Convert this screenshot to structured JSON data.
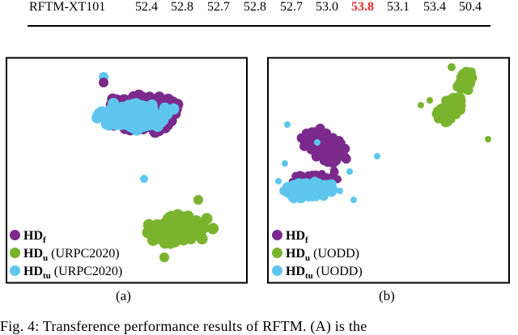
{
  "table_row": {
    "label": "RFTM-XT101",
    "values": [
      "52.4",
      "52.8",
      "52.7",
      "52.8",
      "52.7",
      "53.0",
      "53.8",
      "53.1",
      "53.4",
      "50.4"
    ],
    "best_index": 6,
    "best_color": "#e8272b"
  },
  "colors": {
    "hd_f": "#7b2a8c",
    "hd_u": "#7ab32e",
    "hd_tu": "#5ec6ee"
  },
  "panels": [
    {
      "label": "(a)",
      "legend": [
        {
          "name": "HD",
          "sub": "f",
          "dataset": "",
          "color": "#7b2a8c"
        },
        {
          "name": "HD",
          "sub": "u",
          "dataset": "(URPC2020)",
          "color": "#7ab32e"
        },
        {
          "name": "HD",
          "sub": "tu",
          "dataset": "(URPC2020)",
          "color": "#5ec6ee"
        }
      ]
    },
    {
      "label": "(b)",
      "legend": [
        {
          "name": "HD",
          "sub": "f",
          "dataset": "",
          "color": "#7b2a8c"
        },
        {
          "name": "HD",
          "sub": "u",
          "dataset": "(UODD)",
          "color": "#7ab32e"
        },
        {
          "name": "HD",
          "sub": "tu",
          "dataset": "(UODD)",
          "color": "#5ec6ee"
        }
      ]
    }
  ],
  "caption": "Fig. 4: Transference performance results of RFTM. (A) is the"
}
